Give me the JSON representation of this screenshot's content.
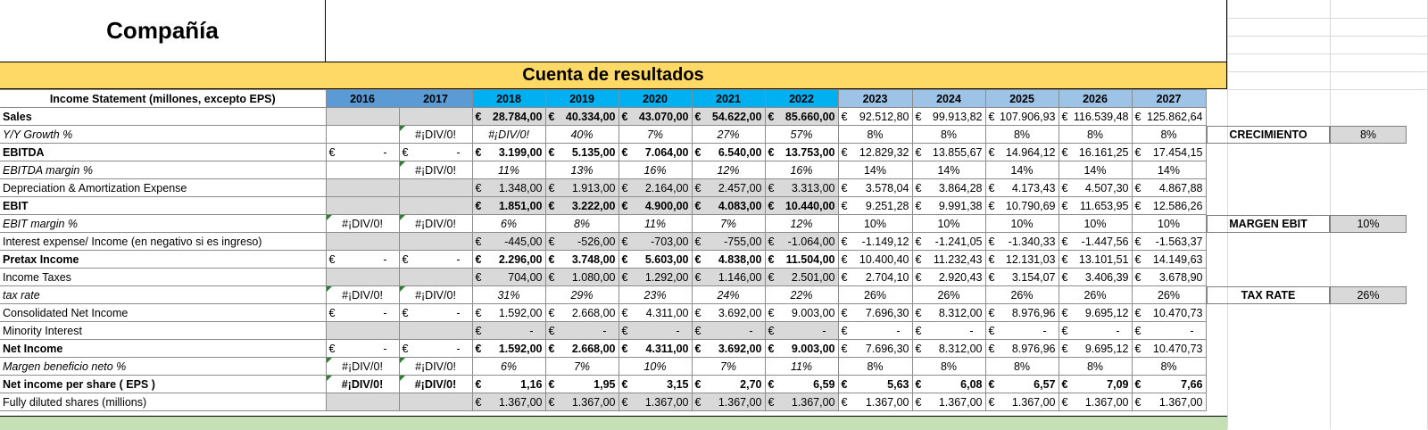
{
  "company": "Compañía",
  "banner": "Cuenta de resultados",
  "header_label": "Income Statement (millones, excepto EPS)",
  "years": [
    "2016",
    "2017",
    "2018",
    "2019",
    "2020",
    "2021",
    "2022",
    "2023",
    "2024",
    "2025",
    "2026",
    "2027"
  ],
  "colors": {
    "banner": "#ffd966",
    "hist_year": "#5b9bd5",
    "base_year": "#00b0f0",
    "proj_year": "#9dc3e6",
    "gray": "#d9d9d9",
    "band": "#c5e0b4"
  },
  "currency": "€",
  "rows": [
    {
      "label": "Sales",
      "style": "bold",
      "kind": "money",
      "gray_pre": true,
      "pre": [
        "",
        ""
      ],
      "vals": [
        "28.784,00",
        "40.334,00",
        "43.070,00",
        "54.622,00",
        "85.660,00",
        "92.512,80",
        "99.913,82",
        "107.906,93",
        "116.539,48",
        "125.862,64"
      ]
    },
    {
      "label": "Y/Y Growth %",
      "style": "ital",
      "kind": "pct",
      "pre": [
        "",
        "#¡DIV/0!"
      ],
      "vals": [
        "#¡DIV/0!",
        "40%",
        "7%",
        "27%",
        "57%",
        "8%",
        "8%",
        "8%",
        "8%",
        "8%"
      ]
    },
    {
      "label": "EBITDA",
      "style": "bold",
      "kind": "money",
      "pre": [
        "-",
        "-"
      ],
      "vals": [
        "3.199,00",
        "5.135,00",
        "7.064,00",
        "6.540,00",
        "13.753,00",
        "12.829,32",
        "13.855,67",
        "14.964,12",
        "16.161,25",
        "17.454,15"
      ]
    },
    {
      "label": "EBITDA margin %",
      "style": "ital",
      "kind": "pct",
      "pre": [
        "",
        "#¡DIV/0!"
      ],
      "vals": [
        "11%",
        "13%",
        "16%",
        "12%",
        "16%",
        "14%",
        "14%",
        "14%",
        "14%",
        "14%"
      ]
    },
    {
      "label": "Depreciation & Amortization Expense",
      "style": "",
      "kind": "money",
      "gray_pre": true,
      "pre": [
        "",
        ""
      ],
      "vals": [
        "1.348,00",
        "1.913,00",
        "2.164,00",
        "2.457,00",
        "3.313,00",
        "3.578,04",
        "3.864,28",
        "4.173,43",
        "4.507,30",
        "4.867,88"
      ]
    },
    {
      "label": "EBIT",
      "style": "bold",
      "kind": "money",
      "gray_pre": true,
      "pre": [
        "",
        ""
      ],
      "vals": [
        "1.851,00",
        "3.222,00",
        "4.900,00",
        "4.083,00",
        "10.440,00",
        "9.251,28",
        "9.991,38",
        "10.790,69",
        "11.653,95",
        "12.586,26"
      ]
    },
    {
      "label": "EBIT margin %",
      "style": "ital",
      "kind": "pct",
      "pre": [
        "#¡DIV/0!",
        "#¡DIV/0!"
      ],
      "vals": [
        "6%",
        "8%",
        "11%",
        "7%",
        "12%",
        "10%",
        "10%",
        "10%",
        "10%",
        "10%"
      ]
    },
    {
      "label": "Interest expense/ Income (en negativo si es ingreso)",
      "style": "",
      "kind": "money",
      "gray_pre": true,
      "pre": [
        "",
        ""
      ],
      "vals": [
        "-445,00",
        "-526,00",
        "-703,00",
        "-755,00",
        "-1.064,00",
        "-1.149,12",
        "-1.241,05",
        "-1.340,33",
        "-1.447,56",
        "-1.563,37"
      ]
    },
    {
      "label": "Pretax Income",
      "style": "bold",
      "kind": "money",
      "pre": [
        "-",
        "-"
      ],
      "vals": [
        "2.296,00",
        "3.748,00",
        "5.603,00",
        "4.838,00",
        "11.504,00",
        "10.400,40",
        "11.232,43",
        "12.131,03",
        "13.101,51",
        "14.149,63"
      ]
    },
    {
      "label": "Income Taxes",
      "style": "",
      "kind": "money",
      "gray_pre": true,
      "pre": [
        "",
        ""
      ],
      "vals": [
        "704,00",
        "1.080,00",
        "1.292,00",
        "1.146,00",
        "2.501,00",
        "2.704,10",
        "2.920,43",
        "3.154,07",
        "3.406,39",
        "3.678,90"
      ]
    },
    {
      "label": "tax rate",
      "style": "ital",
      "kind": "pct",
      "pre": [
        "#¡DIV/0!",
        "#¡DIV/0!"
      ],
      "vals": [
        "31%",
        "29%",
        "23%",
        "24%",
        "22%",
        "26%",
        "26%",
        "26%",
        "26%",
        "26%"
      ]
    },
    {
      "label": "Consolidated Net Income",
      "style": "",
      "kind": "money",
      "pre": [
        "-",
        "-"
      ],
      "vals": [
        "1.592,00",
        "2.668,00",
        "4.311,00",
        "3.692,00",
        "9.003,00",
        "7.696,30",
        "8.312,00",
        "8.976,96",
        "9.695,12",
        "10.470,73"
      ]
    },
    {
      "label": "Minority Interest",
      "style": "",
      "kind": "money",
      "gray_pre": true,
      "pre": [
        "",
        ""
      ],
      "vals": [
        "-",
        "-",
        "-",
        "-",
        "-",
        "-",
        "-",
        "-",
        "-",
        "-"
      ]
    },
    {
      "label": "Net Income",
      "style": "bold",
      "kind": "money",
      "pre": [
        "-",
        "-"
      ],
      "vals": [
        "1.592,00",
        "2.668,00",
        "4.311,00",
        "3.692,00",
        "9.003,00",
        "7.696,30",
        "8.312,00",
        "8.976,96",
        "9.695,12",
        "10.470,73"
      ]
    },
    {
      "label": "Margen beneficio neto %",
      "style": "ital",
      "kind": "pct",
      "pre": [
        "#¡DIV/0!",
        "#¡DIV/0!"
      ],
      "vals": [
        "6%",
        "7%",
        "10%",
        "7%",
        "11%",
        "8%",
        "8%",
        "8%",
        "8%",
        "8%"
      ]
    },
    {
      "label": "Net income per share ( EPS )",
      "style": "bold",
      "kind": "money",
      "pre": [
        "#¡DIV/0!",
        "#¡DIV/0!"
      ],
      "vals": [
        "1,16",
        "1,95",
        "3,15",
        "2,70",
        "6,59",
        "5,63",
        "6,08",
        "6,57",
        "7,09",
        "7,66"
      ]
    },
    {
      "label": "Fully diluted shares  (millions)",
      "style": "",
      "kind": "money",
      "gray_pre": true,
      "pre": [
        "",
        ""
      ],
      "vals": [
        "1.367,00",
        "1.367,00",
        "1.367,00",
        "1.367,00",
        "1.367,00",
        "1.367,00",
        "1.367,00",
        "1.367,00",
        "1.367,00",
        "1.367,00"
      ]
    }
  ],
  "assumptions": [
    {
      "label": "CRECIMIENTO",
      "value": "8%",
      "row": 1
    },
    {
      "label": "MARGEN EBIT",
      "value": "10%",
      "row": 6
    },
    {
      "label": "TAX RATE",
      "value": "26%",
      "row": 10
    }
  ]
}
